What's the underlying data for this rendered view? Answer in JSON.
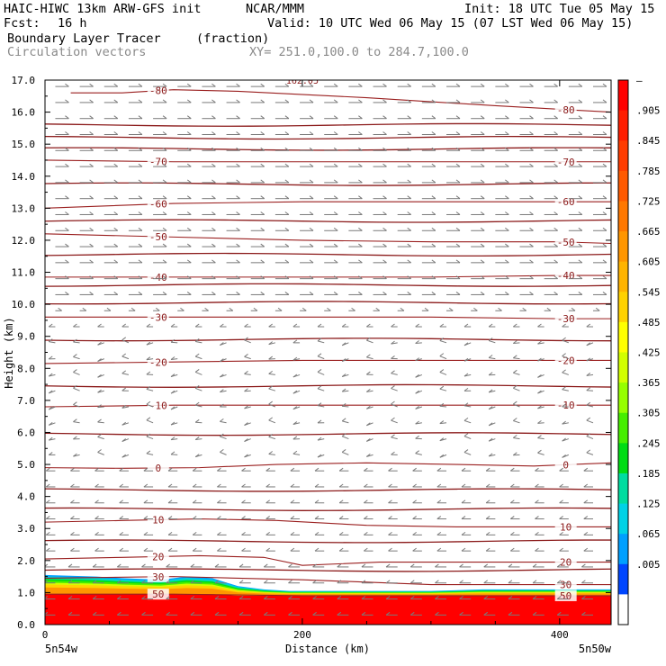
{
  "header": {
    "model": "HAIC-HIWC 13km ARW-GFS init",
    "org": "NCAR/MMM",
    "init": "Init: 18 UTC Tue 05 May 15",
    "fcst_label": "Fcst:",
    "fcst_value": "16 h",
    "valid": "Valid: 10 UTC Wed 06 May 15 (07 LST Wed 06 May 15)",
    "field": "Boundary Layer Tracer",
    "units": "(fraction)",
    "vectors": "Circulation vectors",
    "xy": "XY= 251.0,100.0 to 284.7,100.0"
  },
  "chart_data": {
    "type": "heatmap",
    "title": "Boundary Layer Tracer",
    "xlabel": "Distance (km)",
    "ylabel": "Height (km)",
    "xlim": [
      0,
      440
    ],
    "ylim": [
      0,
      17
    ],
    "x_ticks": [
      0,
      200,
      400
    ],
    "x_tick_labels": [
      "0",
      "200",
      "400"
    ],
    "y_ticks": [
      0,
      1,
      2,
      3,
      4,
      5,
      6,
      7,
      8,
      9,
      10,
      11,
      12,
      13,
      14,
      15,
      16,
      17
    ],
    "y_tick_labels": [
      "0.0",
      "1.0",
      "2.0",
      "3.0",
      "4.0",
      "5.0",
      "6.0",
      "7.0",
      "8.0",
      "9.0",
      "10.0",
      "11.0",
      "12.0",
      "13.0",
      "14.0",
      "15.0",
      "16.0",
      "17.0"
    ],
    "x_endpoint_labels": {
      "left": "5n54w",
      "right": "5n50w"
    },
    "grid": false,
    "colorbar": {
      "labels": [
        "–",
        ".905",
        ".845",
        ".785",
        ".725",
        ".665",
        ".605",
        ".545",
        ".485",
        ".425",
        ".365",
        ".305",
        ".245",
        ".185",
        ".125",
        ".065",
        ".005"
      ],
      "colors": [
        "#ff0000",
        "#ff1e00",
        "#ff3c00",
        "#ff5a00",
        "#ff7800",
        "#ff9600",
        "#ffb400",
        "#ffd200",
        "#ffff00",
        "#d2ff00",
        "#96ff00",
        "#46ee00",
        "#00dc14",
        "#00dca0",
        "#00d2e6",
        "#00a0ff",
        "#0046ff",
        "#ffffff"
      ]
    },
    "tracer_layer": {
      "x": [
        0,
        40,
        60,
        90,
        110,
        130,
        150,
        170,
        190,
        220,
        260,
        300,
        340,
        380,
        420,
        440
      ],
      "top_km": [
        1.55,
        1.5,
        1.45,
        1.4,
        1.5,
        1.45,
        1.2,
        1.1,
        1.05,
        1.05,
        1.05,
        1.05,
        1.1,
        1.1,
        1.1,
        1.1
      ],
      "core_top_km": [
        0.95,
        0.95,
        0.95,
        0.95,
        0.95,
        0.95,
        0.9,
        0.9,
        0.9,
        0.9,
        0.9,
        0.9,
        0.9,
        0.9,
        0.9,
        0.9
      ]
    },
    "temperature_contours": [
      {
        "label": "-80",
        "level": -80,
        "x": [
          20,
          60,
          100,
          150,
          250,
          350,
          440
        ],
        "y": [
          16.6,
          16.6,
          16.7,
          16.65,
          16.45,
          16.2,
          16.0
        ]
      },
      {
        "label": "-70",
        "level": -70,
        "x": [
          0,
          100,
          200,
          300,
          400,
          440
        ],
        "y": [
          14.5,
          14.45,
          14.45,
          14.45,
          14.45,
          14.45
        ]
      },
      {
        "label": "-60",
        "level": -60,
        "x": [
          0,
          100,
          200,
          300,
          400,
          440
        ],
        "y": [
          13.0,
          13.15,
          13.2,
          13.2,
          13.2,
          13.2
        ]
      },
      {
        "label": "-50",
        "level": -50,
        "x": [
          0,
          100,
          200,
          300,
          400,
          440
        ],
        "y": [
          12.2,
          12.1,
          12.0,
          11.95,
          11.95,
          11.9
        ]
      },
      {
        "label": "-40",
        "level": -40,
        "x": [
          0,
          100,
          200,
          300,
          400,
          440
        ],
        "y": [
          10.85,
          10.85,
          10.85,
          10.85,
          10.9,
          10.9
        ]
      },
      {
        "label": "-30",
        "level": -30,
        "x": [
          0,
          100,
          200,
          300,
          400,
          440
        ],
        "y": [
          9.6,
          9.6,
          9.6,
          9.6,
          9.55,
          9.55
        ]
      },
      {
        "label": "-20",
        "level": -20,
        "x": [
          0,
          100,
          200,
          300,
          400,
          440
        ],
        "y": [
          8.15,
          8.2,
          8.25,
          8.25,
          8.25,
          8.25
        ]
      },
      {
        "label": "-10",
        "level": -10,
        "x": [
          0,
          100,
          200,
          300,
          400,
          440
        ],
        "y": [
          6.8,
          6.85,
          6.85,
          6.85,
          6.85,
          6.85
        ]
      },
      {
        "label": "0",
        "level": 0,
        "x": [
          0,
          60,
          120,
          180,
          250,
          320,
          380,
          440
        ],
        "y": [
          4.9,
          4.88,
          4.9,
          5.0,
          5.05,
          5.0,
          4.95,
          5.05
        ]
      },
      {
        "label": "10",
        "level": 10,
        "x": [
          0,
          60,
          120,
          180,
          250,
          320,
          380,
          440
        ],
        "y": [
          3.2,
          3.25,
          3.3,
          3.25,
          3.1,
          3.05,
          3.05,
          3.05
        ]
      },
      {
        "label": "20",
        "level": 20,
        "x": [
          0,
          60,
          120,
          170,
          200,
          260,
          340,
          440
        ],
        "y": [
          2.05,
          2.1,
          2.15,
          2.1,
          1.85,
          1.95,
          1.95,
          1.95
        ]
      },
      {
        "label": "30",
        "level": 30,
        "x": [
          0,
          100,
          200,
          300,
          440
        ],
        "y": [
          1.45,
          1.5,
          1.4,
          1.25,
          1.25
        ]
      },
      {
        "label": "50",
        "level": 50,
        "x": [
          0,
          100,
          200,
          300,
          440
        ],
        "y": [
          0.95,
          0.95,
          0.9,
          0.9,
          0.9
        ]
      }
    ],
    "isentropes_km": [
      1.7,
      2.6,
      3.6,
      4.2,
      5.95,
      7.45,
      8.9,
      10.05,
      10.6,
      11.55,
      12.6,
      13.75,
      14.85,
      15.2,
      15.6
    ],
    "top_label": "162.05"
  }
}
